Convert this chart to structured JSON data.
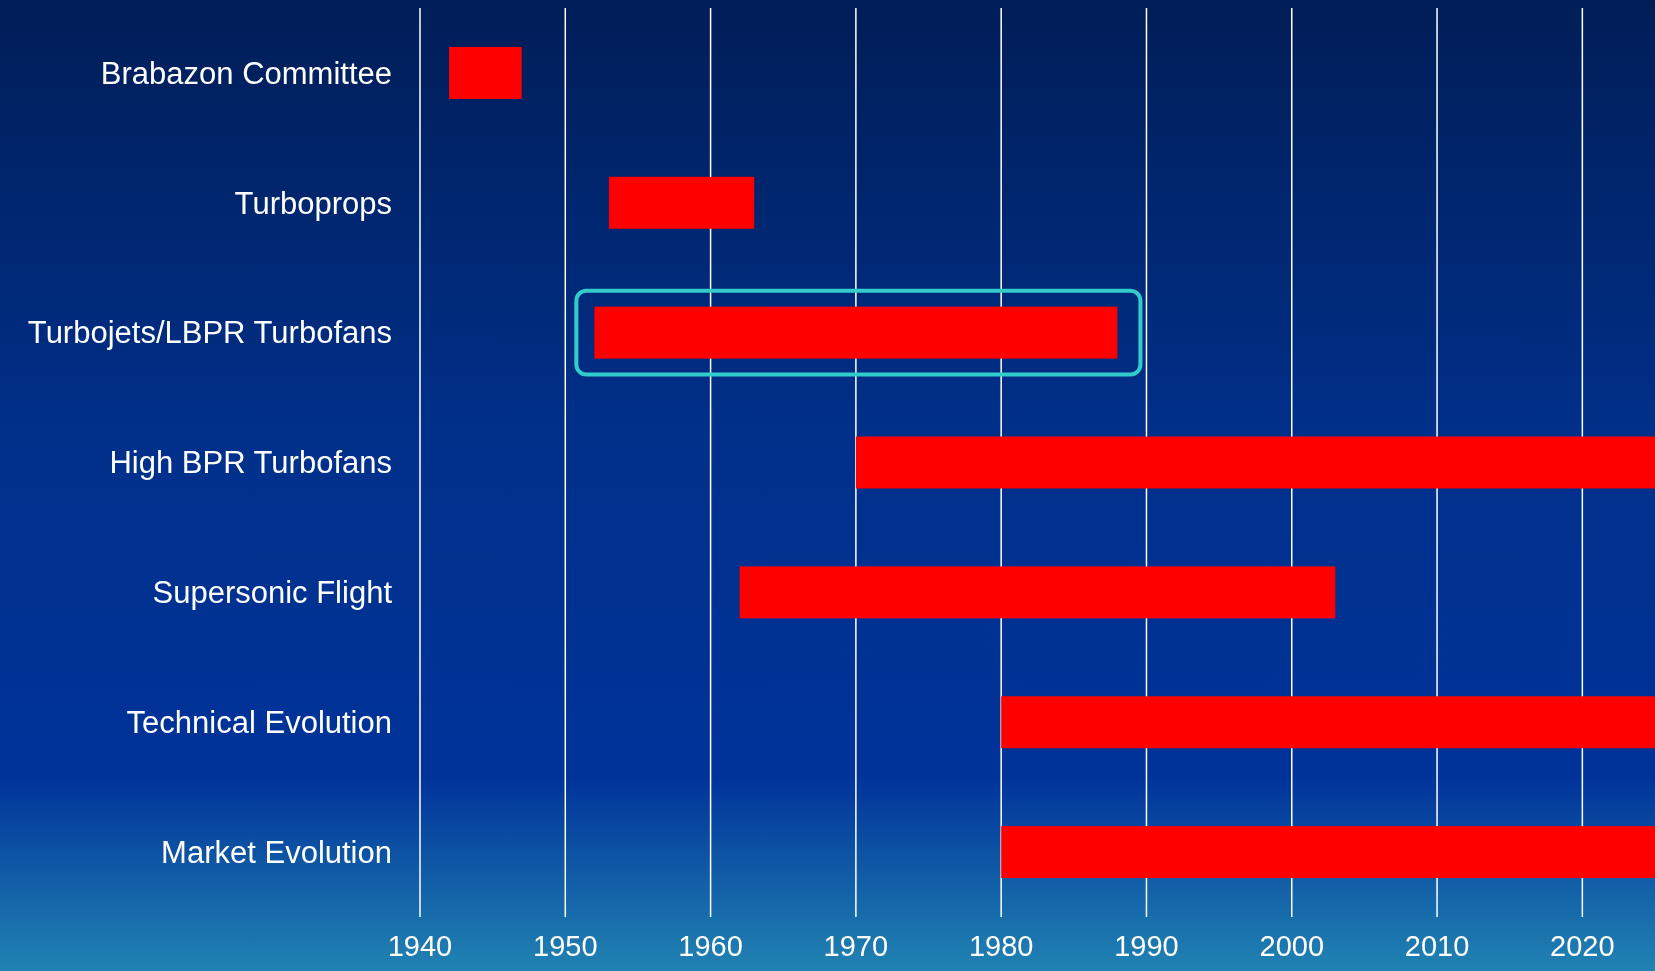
{
  "chart_data": {
    "type": "bar",
    "orientation": "horizontal",
    "categories": [
      "Brabazon Committee",
      "Turboprops",
      "Turbojets/LBPR Turbofans",
      "High BPR Turbofans",
      "Supersonic Flight",
      "Technical Evolution",
      "Market Evolution"
    ],
    "base": [
      1942,
      1953,
      1952,
      1970,
      1962,
      1980,
      1980
    ],
    "values": [
      5,
      10,
      36,
      55,
      41,
      45,
      45
    ],
    "color": "#ff0000",
    "xlim": [
      1940,
      2025
    ],
    "xticks": [
      1940,
      1950,
      1960,
      1970,
      1980,
      1990,
      2000,
      2010,
      2020
    ],
    "grid": "x"
  }
}
